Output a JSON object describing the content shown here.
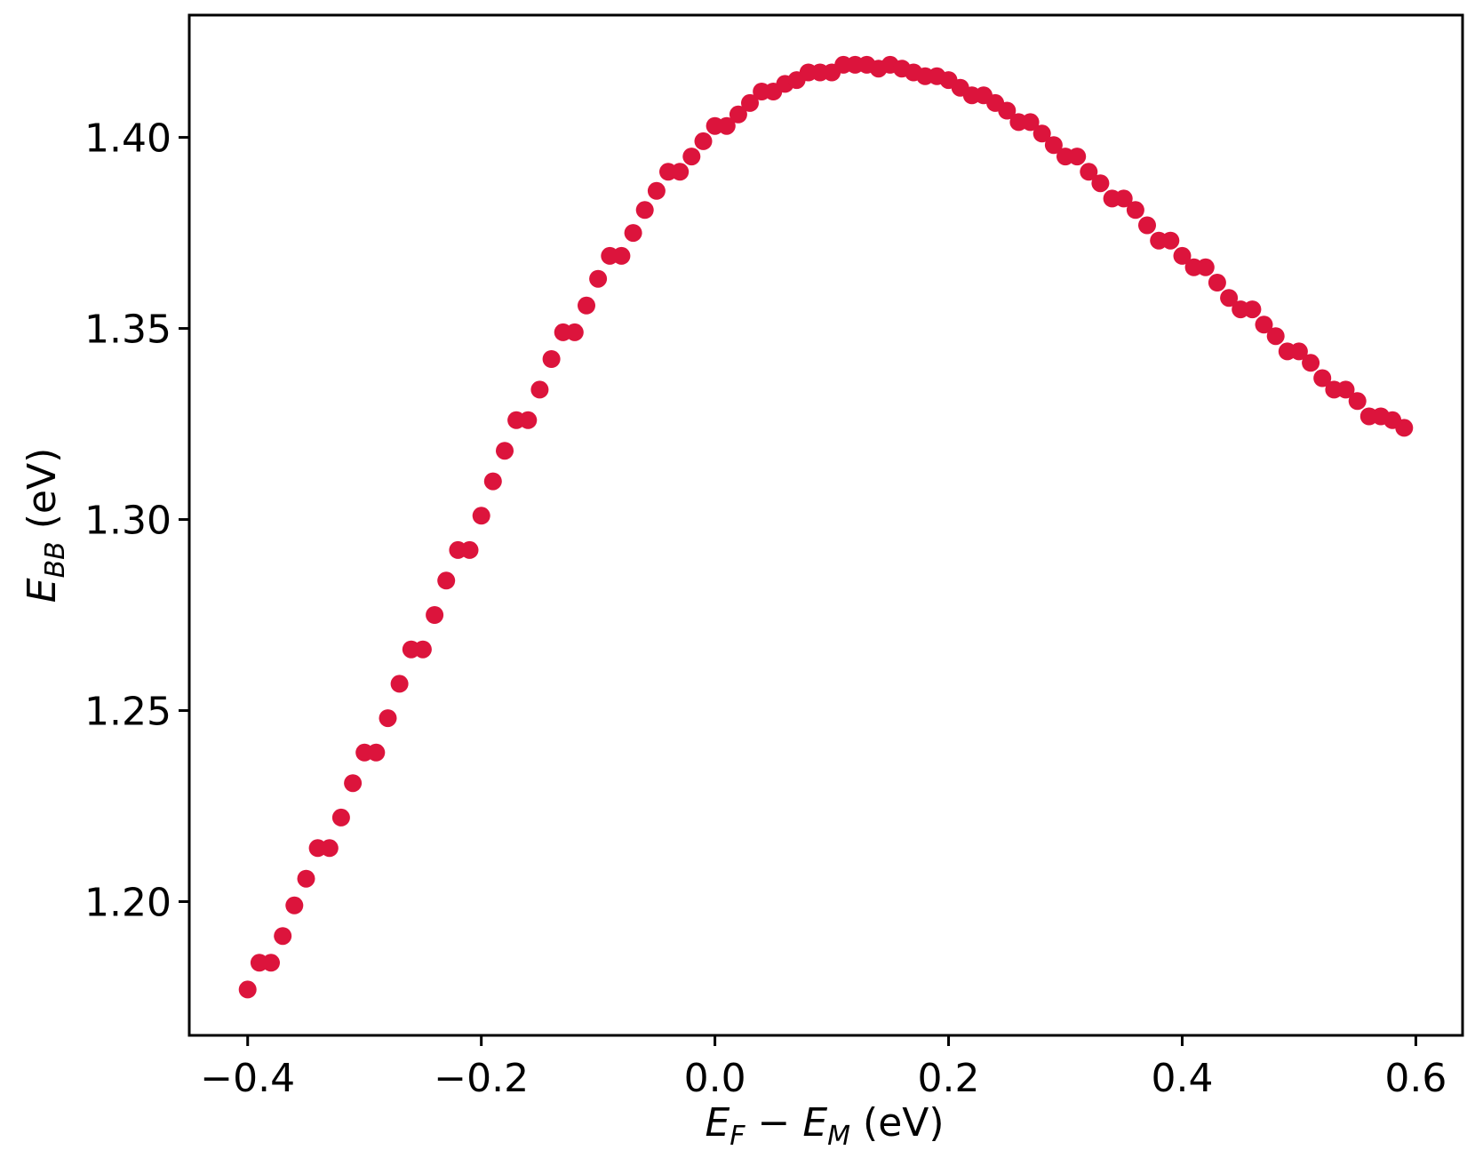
{
  "chart_data": {
    "type": "scatter",
    "xlabel": "E_F − E_M (eV)",
    "ylabel": "E_BB (eV)",
    "xlabel_parts": {
      "e1": "E",
      "s1": "F",
      "minus": " − ",
      "e2": "E",
      "s2": "M",
      "unit": " (eV)"
    },
    "ylabel_parts": {
      "e": "E",
      "s": "BB",
      "unit": " (eV)"
    },
    "xlim": [
      -0.45,
      0.64
    ],
    "ylim": [
      1.165,
      1.432
    ],
    "xticks": [
      -0.4,
      -0.2,
      0.0,
      0.2,
      0.4,
      0.6
    ],
    "xtick_labels": [
      "−0.4",
      "−0.2",
      "0.0",
      "0.2",
      "0.4",
      "0.6"
    ],
    "yticks": [
      1.2,
      1.25,
      1.3,
      1.35,
      1.4
    ],
    "ytick_labels": [
      "1.20",
      "1.25",
      "1.30",
      "1.35",
      "1.40"
    ],
    "grid": false,
    "marker_color": "#DC143C",
    "x": [
      -0.4,
      -0.39,
      -0.38,
      -0.37,
      -0.36,
      -0.35,
      -0.34,
      -0.33,
      -0.32,
      -0.31,
      -0.3,
      -0.29,
      -0.28,
      -0.27,
      -0.26,
      -0.25,
      -0.24,
      -0.23,
      -0.22,
      -0.21,
      -0.2,
      -0.19,
      -0.18,
      -0.17,
      -0.16,
      -0.15,
      -0.14,
      -0.13,
      -0.12,
      -0.11,
      -0.1,
      -0.09,
      -0.08,
      -0.07,
      -0.06,
      -0.05,
      -0.04,
      -0.03,
      -0.02,
      -0.01,
      0.0,
      0.01,
      0.02,
      0.03,
      0.04,
      0.05,
      0.06,
      0.07,
      0.08,
      0.09,
      0.1,
      0.11,
      0.12,
      0.13,
      0.14,
      0.15,
      0.16,
      0.17,
      0.18,
      0.19,
      0.2,
      0.21,
      0.22,
      0.23,
      0.24,
      0.25,
      0.26,
      0.27,
      0.28,
      0.29,
      0.3,
      0.31,
      0.32,
      0.33,
      0.34,
      0.35,
      0.36,
      0.37,
      0.38,
      0.39,
      0.4,
      0.41,
      0.42,
      0.43,
      0.44,
      0.45,
      0.46,
      0.47,
      0.48,
      0.49,
      0.5,
      0.51,
      0.52,
      0.53,
      0.54,
      0.55,
      0.56,
      0.57,
      0.58,
      0.59
    ],
    "y": [
      1.177,
      1.184,
      1.184,
      1.191,
      1.199,
      1.206,
      1.214,
      1.214,
      1.222,
      1.231,
      1.239,
      1.239,
      1.248,
      1.257,
      1.266,
      1.266,
      1.275,
      1.284,
      1.292,
      1.292,
      1.301,
      1.31,
      1.318,
      1.326,
      1.326,
      1.334,
      1.342,
      1.349,
      1.349,
      1.356,
      1.363,
      1.369,
      1.369,
      1.375,
      1.381,
      1.386,
      1.391,
      1.391,
      1.395,
      1.399,
      1.403,
      1.403,
      1.406,
      1.409,
      1.412,
      1.412,
      1.414,
      1.415,
      1.417,
      1.417,
      1.417,
      1.419,
      1.419,
      1.419,
      1.418,
      1.419,
      1.418,
      1.417,
      1.416,
      1.416,
      1.415,
      1.413,
      1.411,
      1.411,
      1.409,
      1.407,
      1.404,
      1.404,
      1.401,
      1.398,
      1.395,
      1.395,
      1.391,
      1.388,
      1.384,
      1.384,
      1.381,
      1.377,
      1.373,
      1.373,
      1.369,
      1.366,
      1.366,
      1.362,
      1.358,
      1.355,
      1.355,
      1.351,
      1.348,
      1.344,
      1.344,
      1.341,
      1.337,
      1.334,
      1.334,
      1.331,
      1.327,
      1.327,
      1.326,
      1.324
    ]
  }
}
